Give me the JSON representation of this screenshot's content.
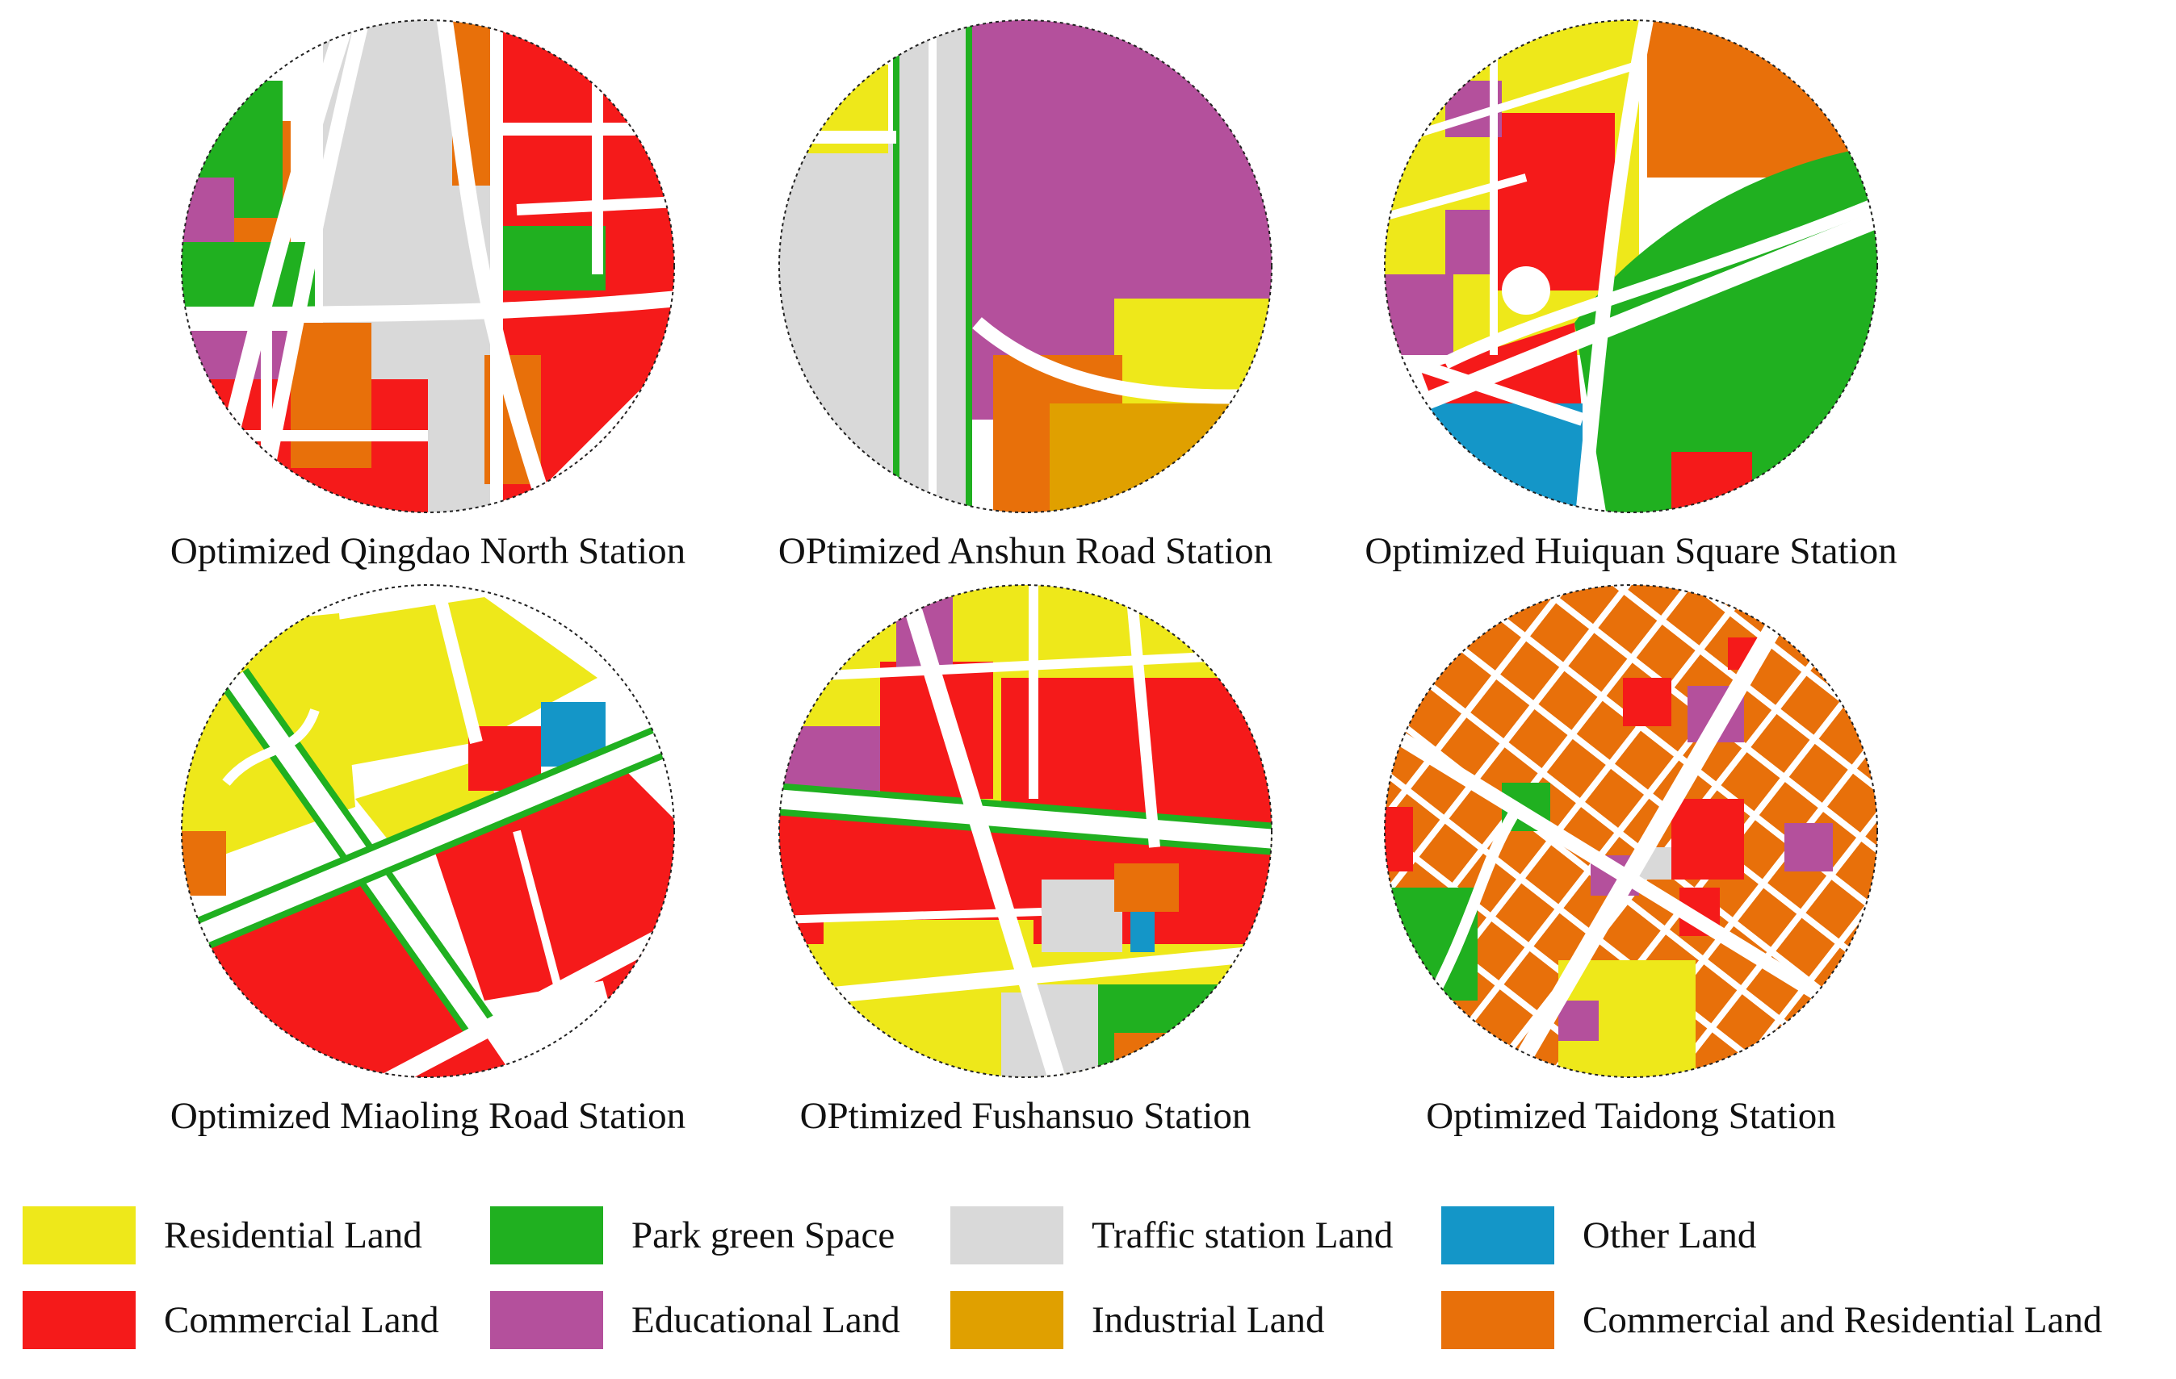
{
  "maps": [
    {
      "id": "qingdao-north",
      "caption": "Optimized Qingdao North Station"
    },
    {
      "id": "anshun-road",
      "caption": "OPtimized Anshun Road Station"
    },
    {
      "id": "huiquan-square",
      "caption": "Optimized Huiquan Square Station"
    },
    {
      "id": "miaoling-road",
      "caption": "Optimized Miaoling Road Station"
    },
    {
      "id": "fushansuo",
      "caption": "OPtimized Fushansuo Station"
    },
    {
      "id": "taidong",
      "caption": "Optimized Taidong Station"
    }
  ],
  "legend": [
    {
      "label": "Residential Land",
      "color": "#eee81a"
    },
    {
      "label": "Park green Space",
      "color": "#20b020"
    },
    {
      "label": "Traffic station Land",
      "color": "#d9d9d9"
    },
    {
      "label": "Other Land",
      "color": "#1496c8"
    },
    {
      "label": "Commercial Land",
      "color": "#f51a1a"
    },
    {
      "label": "Educational Land",
      "color": "#b4509c"
    },
    {
      "label": "Industrial Land",
      "color": "#e0a000"
    },
    {
      "label": "Commercial and Residential Land",
      "color": "#e8700a"
    }
  ]
}
